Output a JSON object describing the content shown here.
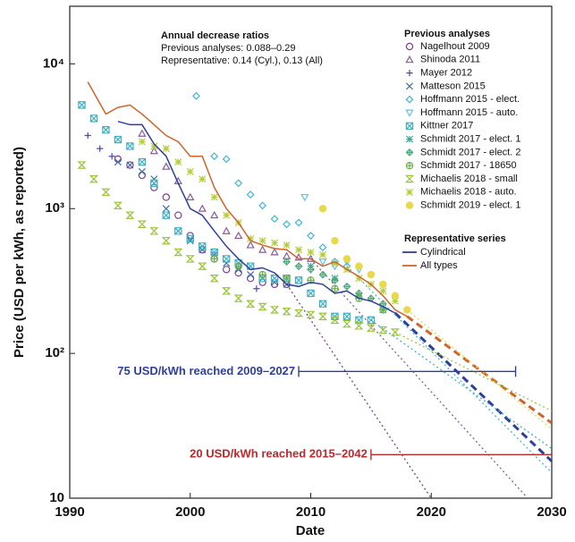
{
  "chart_data": {
    "type": "scatter",
    "log_y": true,
    "x_label": "Date",
    "y_label": "Price (USD per kWh, as reported)",
    "xlim": [
      1990,
      2030
    ],
    "xticks": [
      1990,
      2000,
      2010,
      2020,
      2030
    ],
    "ylim": [
      10,
      25000
    ],
    "yticks": [
      10,
      {
        "value": 100,
        "label": "10²"
      },
      {
        "value": 1000,
        "label": "10³"
      },
      {
        "value": 10000,
        "label": "10⁴"
      }
    ],
    "info": {
      "title": "Annual decrease ratios",
      "lines": [
        "Previous analyses: 0.088–0.29",
        "Representative: 0.14 (Cyl.), 0.13 (All)"
      ]
    },
    "legend_titles": [
      "Previous analyses",
      "Representative series"
    ],
    "series": [
      {
        "name": "Nagelhout 2009",
        "color": "#7b3f8c",
        "marker": "circle",
        "x": [
          1994,
          1995,
          1996,
          1997,
          1998,
          1999,
          2000,
          2001,
          2002,
          2003,
          2004,
          2005,
          2006,
          2007,
          2008
        ],
        "values": [
          2200,
          2000,
          1700,
          1400,
          1200,
          900,
          650,
          520,
          450,
          380,
          360,
          330,
          310,
          300,
          300
        ]
      },
      {
        "name": "Shinoda 2011",
        "color": "#8b5a9a",
        "marker": "triangle",
        "x": [
          1996,
          1997,
          1998,
          1999,
          2000,
          2001,
          2002,
          2003,
          2004,
          2005,
          2006,
          2007,
          2008,
          2009,
          2010
        ],
        "values": [
          3300,
          2500,
          1950,
          1550,
          1200,
          1000,
          900,
          700,
          650,
          560,
          520,
          500,
          470,
          460,
          450
        ]
      },
      {
        "name": "Mayer 2012",
        "color": "#4a4aa8",
        "marker": "plus",
        "x": [
          1991.5,
          1992.5,
          1993.5,
          2005.5
        ],
        "values": [
          3200,
          2600,
          2300,
          280
        ]
      },
      {
        "name": "Matteson 2015",
        "color": "#3a6ea5",
        "marker": "x",
        "x": [
          1994,
          1995,
          1996,
          1997,
          1998,
          1999,
          2000,
          2001,
          2002,
          2003,
          2004,
          2005,
          2006,
          2007,
          2008
        ],
        "values": [
          2100,
          2000,
          1800,
          1600,
          1000,
          700,
          600,
          520,
          480,
          420,
          380,
          350,
          330,
          310,
          300
        ]
      },
      {
        "name": "Hoffmann 2015 - elect.",
        "color": "#3fb6d8",
        "marker": "diamond",
        "x": [
          2000.5,
          2002,
          2003,
          2004,
          2005,
          2006,
          2007,
          2008,
          2009,
          2010,
          2011,
          2012,
          2013
        ],
        "values": [
          6000,
          2300,
          2200,
          1500,
          1250,
          1050,
          850,
          780,
          800,
          650,
          540,
          430,
          400
        ]
      },
      {
        "name": "Hoffmann 2015 - auto.",
        "color": "#5fc5e0",
        "marker": "triangle-down",
        "x": [
          2009.5,
          2011,
          2012,
          2013,
          2014
        ],
        "values": [
          1200,
          430,
          400,
          430,
          380
        ]
      },
      {
        "name": "Kittner 2017",
        "color": "#40b0c0",
        "marker": "square-x",
        "x": [
          1991,
          1992,
          1993,
          1994,
          1995,
          1996,
          1997,
          1998,
          1999,
          2000,
          2001,
          2002,
          2003,
          2004,
          2005,
          2006,
          2007,
          2008,
          2009,
          2010,
          2011,
          2012,
          2013,
          2014,
          2015
        ],
        "values": [
          5200,
          4200,
          3500,
          3000,
          2700,
          2100,
          1500,
          900,
          700,
          620,
          550,
          500,
          450,
          420,
          400,
          330,
          330,
          330,
          320,
          260,
          220,
          180,
          180,
          170,
          170
        ]
      },
      {
        "name": "Schmidt 2017 - elect. 1",
        "color": "#3aa99a",
        "marker": "asterisk",
        "x": [
          2010,
          2012,
          2014,
          2016
        ],
        "values": [
          400,
          330,
          250,
          200
        ]
      },
      {
        "name": "Schmidt 2017 - elect. 2",
        "color": "#4fa87a",
        "marker": "diamond-plus",
        "x": [
          2008,
          2009,
          2010,
          2011,
          2012,
          2013,
          2014,
          2015,
          2016
        ],
        "values": [
          430,
          400,
          380,
          350,
          320,
          290,
          260,
          240,
          220
        ]
      },
      {
        "name": "Schmidt 2017 - 18650",
        "color": "#6ab04c",
        "marker": "circle-plus",
        "x": [
          2002,
          2004,
          2006,
          2008,
          2010,
          2012,
          2014,
          2016
        ],
        "values": [
          450,
          400,
          350,
          330,
          320,
          280,
          240,
          200
        ]
      },
      {
        "name": "Michaelis 2018 - small",
        "color": "#9ac43c",
        "marker": "hourglass",
        "x": [
          1991,
          1992,
          1993,
          1994,
          1995,
          1996,
          1997,
          1998,
          1999,
          2000,
          2001,
          2002,
          2003,
          2004,
          2005,
          2006,
          2007,
          2008,
          2009,
          2010,
          2011,
          2012,
          2013,
          2014,
          2015,
          2016,
          2017
        ],
        "values": [
          2000,
          1600,
          1300,
          1050,
          900,
          780,
          700,
          600,
          500,
          450,
          400,
          330,
          270,
          240,
          220,
          210,
          200,
          195,
          190,
          185,
          180,
          170,
          160,
          155,
          150,
          145,
          140
        ]
      },
      {
        "name": "Michaelis 2018 - auto.",
        "color": "#b5cc3a",
        "marker": "asterisk",
        "x": [
          1996,
          1997,
          1998,
          1999,
          2000,
          2001,
          2002,
          2003,
          2004,
          2005,
          2006,
          2007,
          2008,
          2009,
          2010,
          2011,
          2012,
          2013,
          2014,
          2015,
          2016,
          2017
        ],
        "values": [
          2900,
          2700,
          2600,
          2100,
          1800,
          1600,
          1200,
          900,
          800,
          620,
          600,
          580,
          560,
          520,
          500,
          480,
          420,
          380,
          330,
          300,
          270,
          230
        ]
      },
      {
        "name": "Schmidt 2019 - elect. 1",
        "color": "#e8d84a",
        "marker": "dot",
        "x": [
          2011,
          2012,
          2013,
          2014,
          2015,
          2016,
          2017,
          2018
        ],
        "values": [
          1000,
          600,
          450,
          400,
          350,
          300,
          250,
          200
        ]
      }
    ],
    "lines": [
      {
        "name": "Cylindrical",
        "color": "#2e3f9e",
        "x": [
          1994,
          1995,
          1996,
          1997,
          1998,
          1999,
          2000,
          2001,
          2002,
          2003,
          2004,
          2005,
          2006,
          2007,
          2008,
          2009,
          2010,
          2011,
          2012,
          2013,
          2014,
          2015,
          2016,
          2017
        ],
        "values": [
          4000,
          3800,
          3800,
          2800,
          2300,
          1500,
          1000,
          900,
          700,
          550,
          450,
          380,
          390,
          360,
          300,
          290,
          310,
          300,
          260,
          270,
          240,
          230,
          210,
          190
        ]
      },
      {
        "name": "All types",
        "color": "#d0642a",
        "x": [
          1991.5,
          1993,
          1994,
          1995,
          1996,
          1997,
          1998,
          1999,
          2000,
          2001,
          2002,
          2003,
          2004,
          2005,
          2006,
          2007,
          2008,
          2009,
          2010,
          2011,
          2012,
          2013,
          2014,
          2015,
          2016,
          2017,
          2018
        ],
        "values": [
          7500,
          4500,
          5000,
          5200,
          4500,
          3800,
          3200,
          2900,
          2300,
          2300,
          1400,
          1000,
          800,
          600,
          560,
          530,
          520,
          450,
          450,
          400,
          430,
          380,
          340,
          300,
          250,
          200,
          180
        ]
      }
    ],
    "projections": [
      {
        "color": "#2e3f9e",
        "style": "dashed",
        "x": [
          2017,
          2030
        ],
        "values": [
          190,
          18
        ]
      },
      {
        "color": "#d0642a",
        "style": "dashed",
        "x": [
          2018,
          2030
        ],
        "values": [
          180,
          33
        ]
      },
      {
        "color": "#7b3f8c",
        "style": "dotted",
        "x": [
          2008,
          2020
        ],
        "values": [
          300,
          10
        ]
      },
      {
        "color": "#8b5a9a",
        "style": "dotted",
        "x": [
          2010,
          2028
        ],
        "values": [
          450,
          10
        ]
      },
      {
        "color": "#3fb6d8",
        "style": "dotted",
        "x": [
          2013,
          2030
        ],
        "values": [
          400,
          15
        ]
      },
      {
        "color": "#40b0c0",
        "style": "dotted",
        "x": [
          2015,
          2030
        ],
        "values": [
          170,
          22
        ]
      },
      {
        "color": "#9ac43c",
        "style": "dotted",
        "x": [
          2017,
          2030
        ],
        "values": [
          140,
          40
        ]
      },
      {
        "color": "#e8d84a",
        "style": "dotted",
        "x": [
          2018,
          2030
        ],
        "values": [
          200,
          30
        ]
      }
    ],
    "ranges": [
      {
        "label": "75 USD/kWh reached 2009–2027",
        "color": "#2e3f9e",
        "value": 75,
        "from": 2009,
        "to": 2027
      },
      {
        "label": "20 USD/kWh reached 2015–2042",
        "color": "#c0282c",
        "value": 20,
        "from": 2015,
        "to": 2042
      }
    ]
  }
}
